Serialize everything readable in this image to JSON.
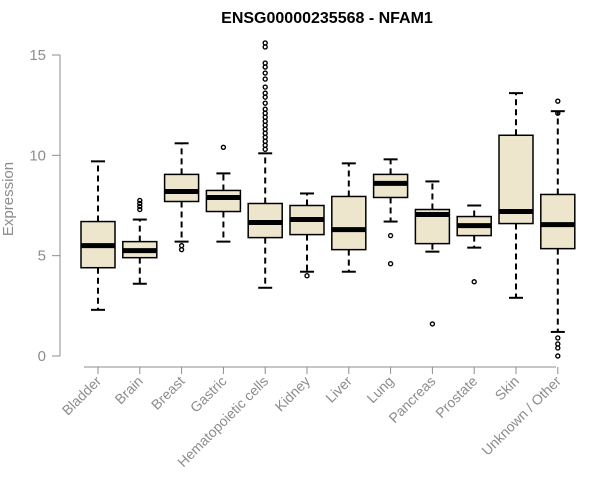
{
  "chart_data": {
    "type": "boxplot",
    "title": "ENSG00000235568 - NFAM1",
    "xlabel": "",
    "ylabel": "Expression",
    "ylim": [
      0,
      15
    ],
    "yticks": [
      0,
      5,
      10,
      15
    ],
    "grid": false,
    "colors": {
      "box_fill": "#ede6cd",
      "box_stroke": "#000000",
      "axis": "#8c8c8c",
      "title": "#000000"
    },
    "categories": [
      "Bladder",
      "Brain",
      "Breast",
      "Gastric",
      "Hematopoietic cells",
      "Kidney",
      "Liver",
      "Lung",
      "Pancreas",
      "Prostate",
      "Skin",
      "Unknown / Other"
    ],
    "boxes": [
      {
        "category": "Bladder",
        "min": 2.3,
        "q1": 4.4,
        "median": 5.5,
        "q3": 6.7,
        "max": 9.7,
        "outliers": []
      },
      {
        "category": "Brain",
        "min": 3.6,
        "q1": 4.9,
        "median": 5.25,
        "q3": 5.7,
        "max": 6.8,
        "outliers": [
          7.3,
          7.45,
          7.6,
          7.75
        ]
      },
      {
        "category": "Breast",
        "min": 5.7,
        "q1": 7.7,
        "median": 8.2,
        "q3": 9.05,
        "max": 10.6,
        "outliers": [
          5.3,
          5.5
        ]
      },
      {
        "category": "Gastric",
        "min": 5.7,
        "q1": 7.2,
        "median": 7.9,
        "q3": 8.25,
        "max": 9.1,
        "outliers": [
          10.4
        ]
      },
      {
        "category": "Hematopoietic cells",
        "min": 3.4,
        "q1": 5.9,
        "median": 6.65,
        "q3": 7.6,
        "max": 10.1,
        "outliers": [
          10.3,
          10.5,
          10.7,
          10.9,
          11.1,
          11.3,
          11.5,
          11.7,
          11.9,
          12.1,
          12.3,
          12.6,
          12.9,
          13.1,
          13.4,
          13.8,
          14.1,
          14.4,
          14.6,
          15.4,
          15.6
        ]
      },
      {
        "category": "Kidney",
        "min": 4.2,
        "q1": 6.05,
        "median": 6.8,
        "q3": 7.5,
        "max": 8.1,
        "outliers": [
          4.0
        ]
      },
      {
        "category": "Liver",
        "min": 4.2,
        "q1": 5.3,
        "median": 6.3,
        "q3": 7.95,
        "max": 9.6,
        "outliers": []
      },
      {
        "category": "Lung",
        "min": 6.7,
        "q1": 7.9,
        "median": 8.6,
        "q3": 9.05,
        "max": 9.8,
        "outliers": [
          6.0,
          4.6
        ]
      },
      {
        "category": "Pancreas",
        "min": 5.2,
        "q1": 5.6,
        "median": 7.05,
        "q3": 7.3,
        "max": 8.7,
        "outliers": [
          1.6
        ]
      },
      {
        "category": "Prostate",
        "min": 5.4,
        "q1": 6.0,
        "median": 6.5,
        "q3": 6.95,
        "max": 7.5,
        "outliers": [
          3.7
        ]
      },
      {
        "category": "Skin",
        "min": 2.9,
        "q1": 6.6,
        "median": 7.2,
        "q3": 11.0,
        "max": 13.1,
        "outliers": []
      },
      {
        "category": "Unknown / Other",
        "min": 1.2,
        "q1": 5.35,
        "median": 6.55,
        "q3": 8.05,
        "max": 12.2,
        "outliers": [
          0.0,
          0.4,
          0.6,
          0.9,
          12.1,
          12.7
        ]
      }
    ]
  }
}
